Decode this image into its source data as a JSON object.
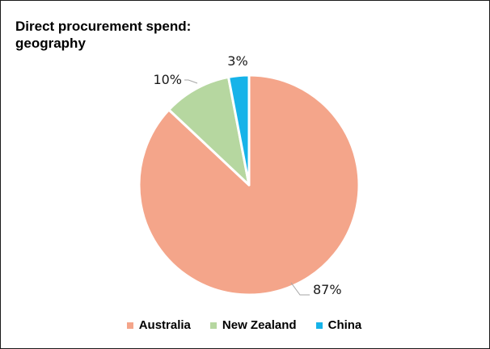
{
  "chart_data": {
    "type": "pie",
    "title": "Direct procurement spend: geography",
    "categories": [
      "Australia",
      "New Zealand",
      "China"
    ],
    "values": [
      87,
      10,
      3
    ],
    "data_labels": [
      "87%",
      "10%",
      "3%"
    ],
    "colors": [
      "#f4a58a",
      "#b6d7a0",
      "#16b3e9"
    ],
    "legend_position": "bottom"
  }
}
